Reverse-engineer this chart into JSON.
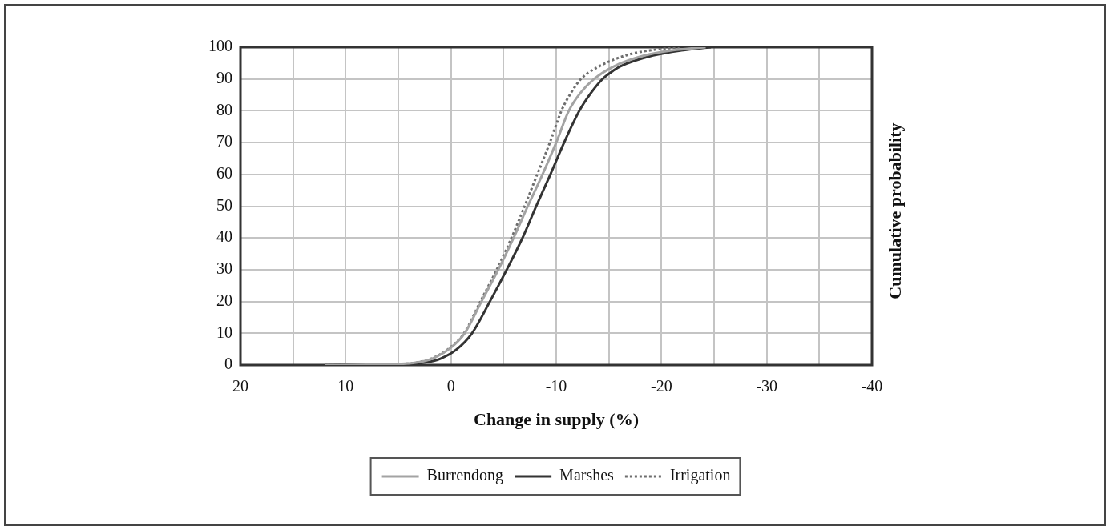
{
  "chart_data": {
    "type": "line",
    "xlabel": "Change in supply (%)",
    "ylabel": "Cumulative probability",
    "xlim": [
      20,
      -40
    ],
    "xticks": [
      20,
      {
        "value": 15,
        "label": null
      },
      10,
      {
        "value": 5,
        "label": null
      },
      0,
      {
        "value": -5,
        "label": null
      },
      -10,
      {
        "value": -15,
        "label": null
      },
      -20,
      {
        "value": -25,
        "label": null
      },
      -30,
      {
        "value": -35,
        "label": null
      },
      -40
    ],
    "ylim": [
      0,
      100
    ],
    "yticks": [
      0,
      10,
      20,
      30,
      40,
      50,
      60,
      70,
      80,
      90,
      100
    ],
    "grid": true,
    "legend": "bottom",
    "series": [
      {
        "name": "Burrendong",
        "color": "#a3a3a3",
        "x": [
          12,
          8,
          5,
          3.2,
          1.65,
          0,
          -1.3,
          -2.9,
          -4.5,
          -5.95,
          -7.3,
          -8.7,
          -10.0,
          -11.2,
          -12.3,
          -13.6,
          -15.5,
          -18.4,
          -21.0,
          -24.2
        ],
        "values": [
          0,
          0.1,
          0.3,
          0.8,
          2.2,
          5.5,
          10,
          20,
          30,
          40,
          50,
          60,
          70,
          80,
          85.6,
          90,
          94,
          97.4,
          99,
          100
        ]
      },
      {
        "name": "Marshes",
        "color": "#333333",
        "x": [
          12,
          8,
          5,
          2.4,
          1.0,
          -0.5,
          -2.0,
          -3.7,
          -5.3,
          -6.8,
          -8.1,
          -9.45,
          -10.75,
          -12.2,
          -13.3,
          -14.4,
          -15.5,
          -16.1,
          -19.2,
          -21.9,
          -24.7
        ],
        "values": [
          0,
          0.1,
          0.2,
          0.8,
          2,
          4.8,
          10,
          20,
          30,
          40,
          50,
          60,
          70,
          80,
          85.6,
          90,
          92.8,
          94,
          97.4,
          99,
          100
        ]
      },
      {
        "name": "Irrigation",
        "color": "#6e6e6e",
        "line_style": "dotted",
        "x": [
          12,
          8,
          5,
          3.2,
          1.65,
          0,
          -1.25,
          -2.8,
          -4.35,
          -5.75,
          -7.0,
          -8.2,
          -9.4,
          -10.5,
          -11.4,
          -12.35,
          -14.1,
          -16.6,
          -18.9,
          -21.7
        ],
        "values": [
          0,
          0.1,
          0.3,
          0.8,
          2.3,
          5.7,
          10,
          20,
          30,
          40,
          50,
          60,
          70,
          80,
          85.6,
          90,
          94,
          97.4,
          99,
          100
        ]
      }
    ]
  }
}
